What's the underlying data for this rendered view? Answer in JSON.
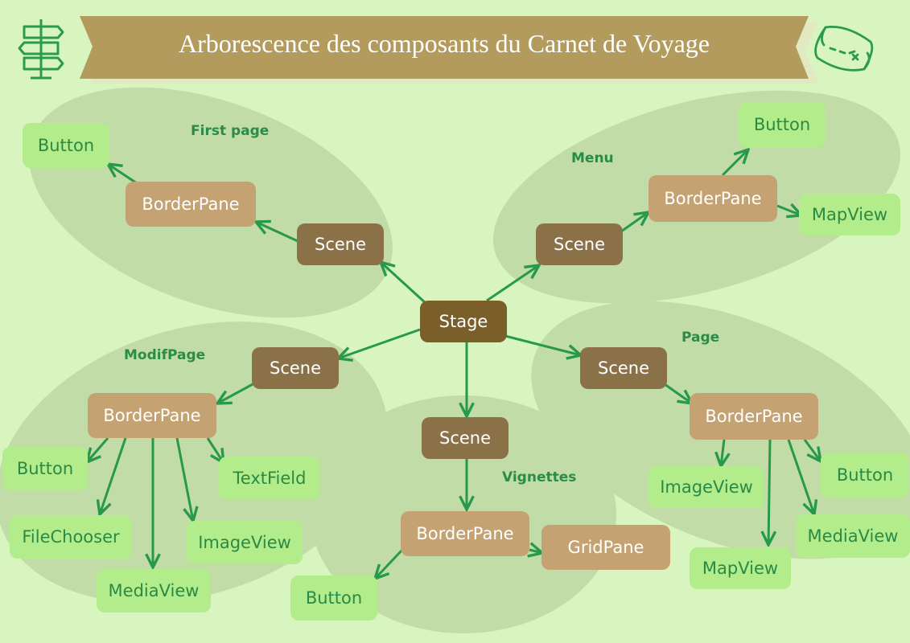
{
  "title": "Arborescence des composants du Carnet de Voyage",
  "colors": {
    "background": "#d8f5c0",
    "group_blob": "#c2dca8",
    "banner": "#b39b5e",
    "stage": "#7a5f2a",
    "scene": "#8a7148",
    "pane": "#c4a272",
    "leaf": "#b3ec8a",
    "leaf_text": "#2a8a45",
    "edge": "#27994a"
  },
  "icons": {
    "left": "signpost-icon",
    "right": "treasure-map-icon"
  },
  "groups": [
    {
      "id": "first-page",
      "label": "First page"
    },
    {
      "id": "menu",
      "label": "Menu"
    },
    {
      "id": "modif-page",
      "label": "ModifPage"
    },
    {
      "id": "vignettes",
      "label": "Vignettes"
    },
    {
      "id": "page",
      "label": "Page"
    }
  ],
  "nodes": [
    {
      "id": "stage",
      "label": "Stage",
      "kind": "stage"
    },
    {
      "id": "fp-scene",
      "label": "Scene",
      "kind": "scene"
    },
    {
      "id": "fp-borderpane",
      "label": "BorderPane",
      "kind": "pane"
    },
    {
      "id": "fp-button",
      "label": "Button",
      "kind": "leaf"
    },
    {
      "id": "menu-scene",
      "label": "Scene",
      "kind": "scene"
    },
    {
      "id": "menu-borderpane",
      "label": "BorderPane",
      "kind": "pane"
    },
    {
      "id": "menu-button",
      "label": "Button",
      "kind": "leaf"
    },
    {
      "id": "menu-mapview",
      "label": "MapView",
      "kind": "leaf"
    },
    {
      "id": "mp-scene",
      "label": "Scene",
      "kind": "scene"
    },
    {
      "id": "mp-borderpane",
      "label": "BorderPane",
      "kind": "pane"
    },
    {
      "id": "mp-button",
      "label": "Button",
      "kind": "leaf"
    },
    {
      "id": "mp-textfield",
      "label": "TextField",
      "kind": "leaf"
    },
    {
      "id": "mp-filechooser",
      "label": "FileChooser",
      "kind": "leaf"
    },
    {
      "id": "mp-imageview",
      "label": "ImageView",
      "kind": "leaf"
    },
    {
      "id": "mp-mediaview",
      "label": "MediaView",
      "kind": "leaf"
    },
    {
      "id": "vg-scene",
      "label": "Scene",
      "kind": "scene"
    },
    {
      "id": "vg-borderpane",
      "label": "BorderPane",
      "kind": "pane"
    },
    {
      "id": "vg-gridpane",
      "label": "GridPane",
      "kind": "pane"
    },
    {
      "id": "vg-button",
      "label": "Button",
      "kind": "leaf"
    },
    {
      "id": "pg-scene",
      "label": "Scene",
      "kind": "scene"
    },
    {
      "id": "pg-borderpane",
      "label": "BorderPane",
      "kind": "pane"
    },
    {
      "id": "pg-imageview",
      "label": "ImageView",
      "kind": "leaf"
    },
    {
      "id": "pg-button",
      "label": "Button",
      "kind": "leaf"
    },
    {
      "id": "pg-mapview",
      "label": "MapView",
      "kind": "leaf"
    },
    {
      "id": "pg-mediaview",
      "label": "MediaView",
      "kind": "leaf"
    }
  ],
  "edges": [
    {
      "from": "stage",
      "to": "fp-scene"
    },
    {
      "from": "fp-scene",
      "to": "fp-borderpane"
    },
    {
      "from": "fp-borderpane",
      "to": "fp-button"
    },
    {
      "from": "stage",
      "to": "menu-scene"
    },
    {
      "from": "menu-scene",
      "to": "menu-borderpane"
    },
    {
      "from": "menu-borderpane",
      "to": "menu-button"
    },
    {
      "from": "menu-borderpane",
      "to": "menu-mapview"
    },
    {
      "from": "stage",
      "to": "mp-scene"
    },
    {
      "from": "mp-scene",
      "to": "mp-borderpane"
    },
    {
      "from": "mp-borderpane",
      "to": "mp-button"
    },
    {
      "from": "mp-borderpane",
      "to": "mp-textfield"
    },
    {
      "from": "mp-borderpane",
      "to": "mp-filechooser"
    },
    {
      "from": "mp-borderpane",
      "to": "mp-imageview"
    },
    {
      "from": "mp-borderpane",
      "to": "mp-mediaview"
    },
    {
      "from": "stage",
      "to": "vg-scene"
    },
    {
      "from": "vg-scene",
      "to": "vg-borderpane"
    },
    {
      "from": "vg-borderpane",
      "to": "vg-gridpane"
    },
    {
      "from": "vg-borderpane",
      "to": "vg-button"
    },
    {
      "from": "stage",
      "to": "pg-scene"
    },
    {
      "from": "pg-scene",
      "to": "pg-borderpane"
    },
    {
      "from": "pg-borderpane",
      "to": "pg-imageview"
    },
    {
      "from": "pg-borderpane",
      "to": "pg-button"
    },
    {
      "from": "pg-borderpane",
      "to": "pg-mapview"
    },
    {
      "from": "pg-borderpane",
      "to": "pg-mediaview"
    }
  ]
}
